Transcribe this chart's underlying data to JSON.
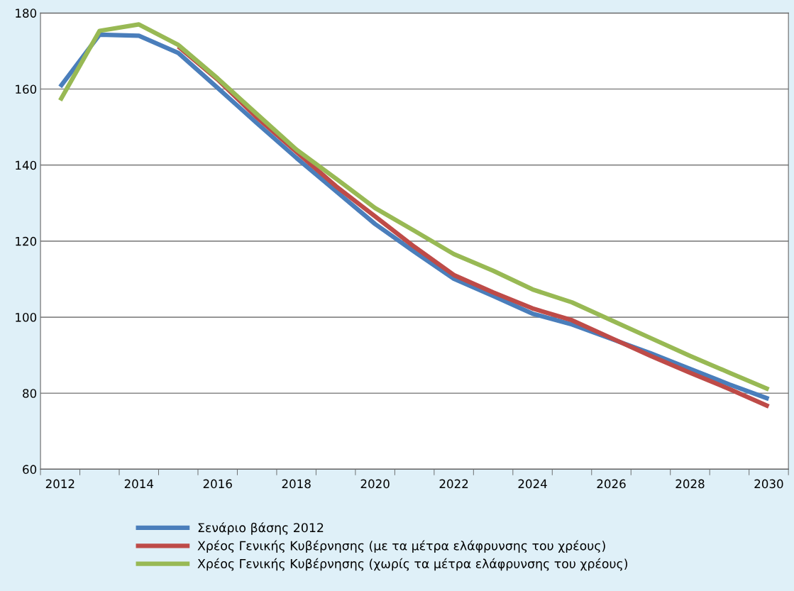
{
  "chart_data": {
    "type": "line",
    "categories": [
      "2012",
      null,
      "2014",
      null,
      "2016",
      null,
      "2018",
      null,
      "2020",
      null,
      "2022",
      null,
      "2024",
      null,
      "2026",
      null,
      "2028",
      null,
      "2030"
    ],
    "series": [
      {
        "name": "Σενάριο βάσης 2012",
        "color": "#4a7ebb",
        "values": [
          160.6,
          174.3,
          174,
          169.5,
          160.3,
          151,
          141.9,
          133.2,
          124.5,
          117.2,
          110.1,
          105.6,
          100.9,
          98.1,
          94.3,
          90.5,
          86.4,
          82.3,
          78.5
        ]
      },
      {
        "name": "Χρέος Γενικής Κυβέρνησης (με τα μέτρα ελάφρυνσης του χρέους)",
        "color": "#be4b48",
        "values": [
          null,
          null,
          null,
          171.2,
          162.5,
          152.5,
          143.5,
          134.5,
          126.5,
          118.5,
          111.1,
          106.5,
          102.3,
          99.2,
          94.5,
          89.8,
          85.4,
          81.1,
          76.5
        ]
      },
      {
        "name": "Χρέος Γενικής Κυβέρνησης (χωρίς τα μέτρα ελάφρυνσης του χρέους)",
        "color": "#98b954",
        "values": [
          157,
          175.3,
          177,
          171.6,
          162.8,
          153.4,
          144.1,
          136.5,
          128.7,
          122.7,
          116.6,
          112.2,
          107.3,
          103.9,
          99.2,
          94.5,
          89.8,
          85.4,
          81
        ]
      }
    ],
    "ylim": [
      60,
      180
    ],
    "yticks": [
      60,
      80,
      100,
      120,
      140,
      160,
      180
    ],
    "grid": "y",
    "legend": "bottom",
    "marker": "none",
    "line_style": "solid"
  }
}
